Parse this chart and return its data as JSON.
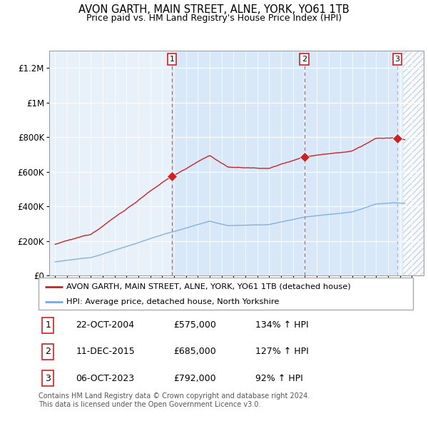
{
  "title": "AVON GARTH, MAIN STREET, ALNE, YORK, YO61 1TB",
  "subtitle": "Price paid vs. HM Land Registry's House Price Index (HPI)",
  "legend_line1": "AVON GARTH, MAIN STREET, ALNE, YORK, YO61 1TB (detached house)",
  "legend_line2": "HPI: Average price, detached house, North Yorkshire",
  "footer1": "Contains HM Land Registry data © Crown copyright and database right 2024.",
  "footer2": "This data is licensed under the Open Government Licence v3.0.",
  "sales": [
    {
      "num": 1,
      "date": "22-OCT-2004",
      "price": 575000,
      "hpi_pct": "134%",
      "x": 2004.81
    },
    {
      "num": 2,
      "date": "11-DEC-2015",
      "price": 685000,
      "hpi_pct": "127%",
      "x": 2015.95
    },
    {
      "num": 3,
      "date": "06-OCT-2023",
      "price": 792000,
      "hpi_pct": "92%",
      "x": 2023.77
    }
  ],
  "hpi_color": "#7aaadd",
  "sale_color": "#cc2222",
  "dashed_color_red": "#dd4444",
  "dashed_color_gray": "#aaaaaa",
  "background_color": "#e8f0fa",
  "ylim": [
    0,
    1300000
  ],
  "xlim_start": 1994.5,
  "xlim_end": 2026.0,
  "hatch_start": 2024.25
}
